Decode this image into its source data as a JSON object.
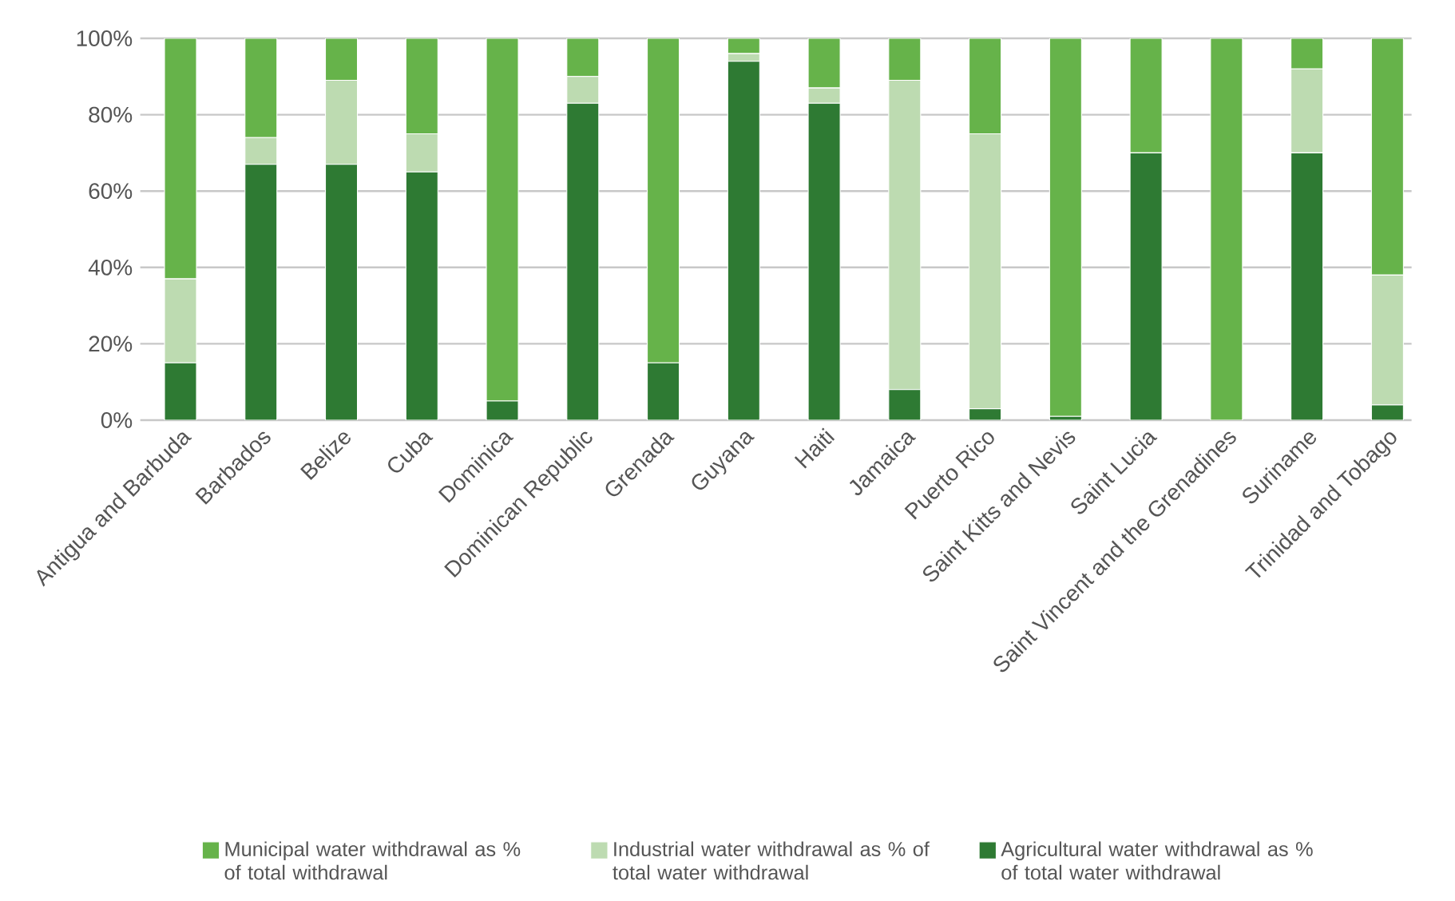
{
  "chart_data": {
    "type": "bar",
    "stacked": true,
    "categories": [
      "Antigua and Barbuda",
      "Barbados",
      "Belize",
      "Cuba",
      "Dominica",
      "Dominican Republic",
      "Grenada",
      "Guyana",
      "Haiti",
      "Jamaica",
      "Puerto Rico",
      "Saint Kitts and Nevis",
      "Saint Lucia",
      "Saint Vincent and the Grenadines",
      "Suriname",
      "Trinidad and Tobago"
    ],
    "series": [
      {
        "name": "Agricultural water withdrawal as % of total water withdrawal",
        "color": "#2e7a33",
        "values": [
          15,
          67,
          67,
          65,
          5,
          83,
          15,
          94,
          83,
          8,
          3,
          1,
          70,
          0,
          70,
          4
        ]
      },
      {
        "name": "Industrial water withdrawal as % of total water withdrawal",
        "color": "#bddbb1",
        "values": [
          22,
          7,
          22,
          10,
          0,
          7,
          0,
          2,
          4,
          81,
          72,
          0,
          0,
          0,
          22,
          34
        ]
      },
      {
        "name": "Municipal water withdrawal as % of total withdrawal",
        "color": "#66b34a",
        "values": [
          63,
          26,
          11,
          25,
          95,
          10,
          85,
          4,
          13,
          11,
          25,
          99,
          30,
          100,
          8,
          62
        ]
      }
    ],
    "ylim": [
      0,
      100
    ],
    "yticks": [
      {
        "value": 0,
        "label": "0%"
      },
      {
        "value": 20,
        "label": "20%"
      },
      {
        "value": 40,
        "label": "40%"
      },
      {
        "value": 60,
        "label": "60%"
      },
      {
        "value": 80,
        "label": "80%"
      },
      {
        "value": 100,
        "label": "100%"
      }
    ],
    "grid": "y",
    "legend": "bottom"
  }
}
